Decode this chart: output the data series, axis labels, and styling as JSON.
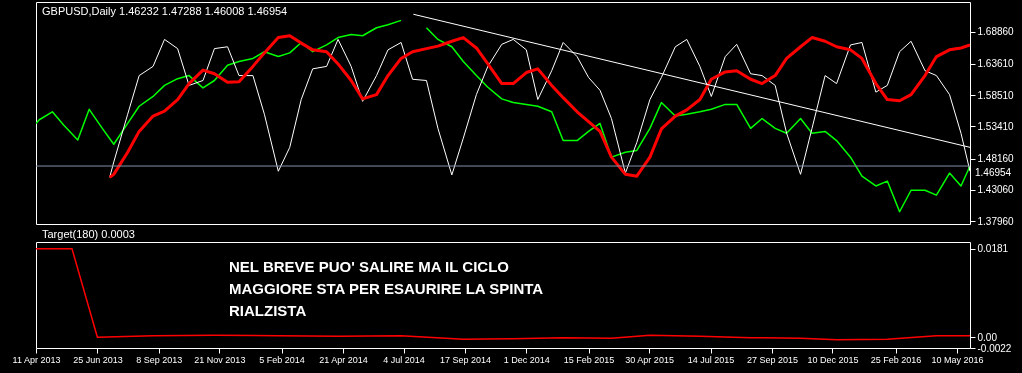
{
  "chart_data": [
    {
      "type": "line",
      "title": "GBPUSD,Daily 1.46232 1.47288 1.46008 1.46954",
      "tick_labels": "y",
      "x": [
        "2013-04-11",
        "2013-04-15",
        "2013-05-01",
        "2013-05-15",
        "2013-06-01",
        "2013-06-15",
        "2013-07-01",
        "2013-07-15",
        "2013-08-01",
        "2013-08-15",
        "2013-09-01",
        "2013-09-15",
        "2013-10-01",
        "2013-10-15",
        "2013-11-01",
        "2013-11-15",
        "2013-12-01",
        "2013-12-15",
        "2014-01-01",
        "2014-01-15",
        "2014-02-01",
        "2014-02-15",
        "2014-03-01",
        "2014-03-15",
        "2014-04-01",
        "2014-04-15",
        "2014-05-01",
        "2014-05-15",
        "2014-06-01",
        "2014-06-15",
        "2014-07-01",
        "2014-07-15",
        "2014-08-01",
        "2014-08-15",
        "2014-09-01",
        "2014-09-15",
        "2014-10-01",
        "2014-10-15",
        "2014-11-01",
        "2014-11-15",
        "2014-12-01",
        "2014-12-15",
        "2015-01-01",
        "2015-01-15",
        "2015-02-01",
        "2015-02-15",
        "2015-03-01",
        "2015-03-15",
        "2015-04-01",
        "2015-04-15",
        "2015-05-01",
        "2015-05-15",
        "2015-06-01",
        "2015-06-15",
        "2015-07-01",
        "2015-07-15",
        "2015-08-01",
        "2015-08-15",
        "2015-09-01",
        "2015-09-15",
        "2015-10-01",
        "2015-10-15",
        "2015-11-01",
        "2015-11-15",
        "2015-12-01",
        "2015-12-15",
        "2016-01-01",
        "2016-01-15",
        "2016-02-01",
        "2016-02-15",
        "2016-03-01",
        "2016-03-15",
        "2016-04-01",
        "2016-04-15",
        "2016-05-01",
        "2016-05-15",
        "2016-05-26"
      ],
      "series": [
        {
          "color": "#00ff00",
          "values": [
            1.539,
            1.545,
            1.558,
            1.536,
            1.512,
            1.562,
            1.531,
            1.505,
            1.539,
            1.567,
            1.583,
            1.601,
            1.612,
            1.617,
            1.597,
            1.609,
            1.634,
            1.64,
            1.645,
            1.656,
            1.648,
            1.654,
            1.671,
            1.656,
            1.667,
            1.679,
            1.684,
            1.682,
            1.695,
            1.7,
            1.707,
            null,
            1.695,
            1.676,
            1.664,
            1.64,
            1.617,
            1.598,
            1.579,
            1.573,
            1.57,
            1.567,
            1.558,
            1.511,
            1.511,
            1.526,
            1.539,
            1.484,
            1.492,
            1.495,
            1.531,
            1.573,
            1.551,
            1.554,
            1.558,
            1.562,
            1.57,
            1.57,
            1.531,
            1.547,
            1.531,
            1.523,
            1.547,
            1.523,
            1.526,
            1.511,
            1.484,
            1.453,
            1.437,
            1.445,
            1.395,
            1.43,
            1.43,
            1.422,
            1.458,
            1.437,
            1.46954
          ]
        },
        {
          "color": "#ffffff",
          "x": [
            "2013-07-10",
            "2013-07-15",
            "2013-08-01",
            "2013-08-15",
            "2013-09-01",
            "2013-09-15",
            "2013-10-01",
            "2013-10-15",
            "2013-11-01",
            "2013-11-15",
            "2013-12-01",
            "2013-12-15",
            "2014-01-01",
            "2014-01-15",
            "2014-02-01",
            "2014-02-15",
            "2014-03-01",
            "2014-03-15",
            "2014-04-01",
            "2014-04-15",
            "2014-05-01",
            "2014-05-15",
            "2014-06-01",
            "2014-06-15",
            "2014-07-01",
            "2014-07-15",
            "2014-08-01",
            "2014-08-15",
            "2014-09-01",
            "2014-09-15",
            "2014-10-01",
            "2014-10-15",
            "2014-11-01",
            "2014-11-15",
            "2014-12-01",
            "2014-12-15",
            "2015-01-01",
            "2015-01-15",
            "2015-02-01",
            "2015-02-15",
            "2015-03-01",
            "2015-03-15",
            "2015-04-01",
            "2015-04-15",
            "2015-05-01",
            "2015-05-15",
            "2015-06-01",
            "2015-06-15",
            "2015-07-01",
            "2015-07-15",
            "2015-08-01",
            "2015-08-15",
            "2015-09-01",
            "2015-09-15",
            "2015-10-01",
            "2015-10-15",
            "2015-11-01",
            "2015-11-15",
            "2015-12-01",
            "2015-12-15",
            "2016-01-01",
            "2016-01-15",
            "2016-02-01",
            "2016-02-15",
            "2016-03-01",
            "2016-03-15",
            "2016-04-01",
            "2016-04-15",
            "2016-05-01",
            "2016-05-15",
            "2016-05-26"
          ],
          "values": [
            1.451,
            1.476,
            1.554,
            1.617,
            1.632,
            1.676,
            1.661,
            1.601,
            1.609,
            1.661,
            1.664,
            1.617,
            1.617,
            1.554,
            1.461,
            1.5,
            1.578,
            1.628,
            1.632,
            1.676,
            1.632,
            1.575,
            1.617,
            1.659,
            1.671,
            1.611,
            1.609,
            1.531,
            1.455,
            1.515,
            1.586,
            1.632,
            1.668,
            1.676,
            1.659,
            1.578,
            1.625,
            1.671,
            1.648,
            1.614,
            1.593,
            1.547,
            1.458,
            1.508,
            1.578,
            1.614,
            1.664,
            1.676,
            1.632,
            1.583,
            1.648,
            1.668,
            1.62,
            1.617,
            1.601,
            1.523,
            1.456,
            1.531,
            1.617,
            1.604,
            1.667,
            1.671,
            1.59,
            1.601,
            1.656,
            1.673,
            1.625,
            1.617,
            1.586,
            1.523,
            1.461
          ]
        },
        {
          "color": "#ff0000",
          "x": [
            "2013-07-10",
            "2013-07-15",
            "2013-08-01",
            "2013-08-15",
            "2013-09-01",
            "2013-09-15",
            "2013-10-01",
            "2013-10-15",
            "2013-11-01",
            "2013-11-15",
            "2013-12-01",
            "2013-12-15",
            "2014-01-01",
            "2014-01-15",
            "2014-02-01",
            "2014-02-15",
            "2014-03-01",
            "2014-03-15",
            "2014-04-01",
            "2014-04-15",
            "2014-05-01",
            "2014-05-15",
            "2014-06-01",
            "2014-06-15",
            "2014-07-01",
            "2014-07-15",
            "2014-08-01",
            "2014-08-15",
            "2014-09-01",
            "2014-09-15",
            "2014-10-01",
            "2014-10-15",
            "2014-11-01",
            "2014-11-15",
            "2014-12-01",
            "2014-12-15",
            "2015-01-01",
            "2015-01-15",
            "2015-02-01",
            "2015-02-15",
            "2015-03-01",
            "2015-03-15",
            "2015-04-01",
            "2015-04-15",
            "2015-05-01",
            "2015-05-15",
            "2015-06-01",
            "2015-06-15",
            "2015-07-01",
            "2015-07-15",
            "2015-08-01",
            "2015-08-15",
            "2015-09-01",
            "2015-09-15",
            "2015-10-01",
            "2015-10-15",
            "2015-11-01",
            "2015-11-15",
            "2015-12-01",
            "2015-12-15",
            "2016-01-01",
            "2016-01-15",
            "2016-02-01",
            "2016-02-15",
            "2016-03-01",
            "2016-03-15",
            "2016-04-01",
            "2016-04-15",
            "2016-05-01",
            "2016-05-15",
            "2016-05-26"
          ],
          "values": [
            1.451,
            1.456,
            1.492,
            1.526,
            1.551,
            1.559,
            1.578,
            1.604,
            1.626,
            1.62,
            1.606,
            1.607,
            1.632,
            1.654,
            1.679,
            1.682,
            1.67,
            1.659,
            1.656,
            1.636,
            1.609,
            1.579,
            1.586,
            1.617,
            1.645,
            1.656,
            1.661,
            1.665,
            1.673,
            1.679,
            1.662,
            1.636,
            1.604,
            1.604,
            1.622,
            1.628,
            1.601,
            1.581,
            1.558,
            1.542,
            1.526,
            1.484,
            1.456,
            1.453,
            1.484,
            1.53,
            1.551,
            1.561,
            1.578,
            1.611,
            1.623,
            1.625,
            1.611,
            1.604,
            1.617,
            1.645,
            1.664,
            1.679,
            1.673,
            1.664,
            1.659,
            1.645,
            1.604,
            1.578,
            1.576,
            1.586,
            1.617,
            1.648,
            1.659,
            1.662,
            1.667
          ]
        },
        {
          "color": "#ffffff",
          "x": [
            "2014-07-16",
            "2016-05-26"
          ],
          "values": [
            1.717,
            1.5
          ]
        }
      ],
      "xlim": [
        "2013-04-11",
        "2016-05-26"
      ],
      "ylim": [
        1.375,
        1.737
      ],
      "yticks": [
        {
          "value": 1.3796,
          "label": "1.37960"
        },
        {
          "value": 1.4306,
          "label": "1.43060"
        },
        {
          "value": 1.4816,
          "label": "1.48160"
        },
        {
          "value": 1.5341,
          "label": "1.53410"
        },
        {
          "value": 1.5851,
          "label": "1.58510"
        },
        {
          "value": 1.6361,
          "label": "1.63610"
        },
        {
          "value": 1.6886,
          "label": "1.68860"
        }
      ],
      "ref_lines": [
        {
          "axis": "y",
          "value": 1.46954,
          "label": "1.46954",
          "color": "#8092a8"
        }
      ]
    },
    {
      "type": "line",
      "title": "Target(180) 0.0003",
      "series": [
        {
          "color": "#ff0000",
          "x": [
            "2013-04-11",
            "2013-05-25",
            "2013-06-25",
            "2013-09-01",
            "2013-11-15",
            "2014-02-01",
            "2014-04-15",
            "2014-07-01",
            "2014-09-15",
            "2014-11-15",
            "2015-01-15",
            "2015-03-15",
            "2015-05-01",
            "2015-07-01",
            "2015-09-01",
            "2015-11-01",
            "2015-12-15",
            "2016-02-15",
            "2016-04-15",
            "2016-05-26"
          ],
          "values": [
            0.0181,
            0.0181,
            0.0,
            0.0003,
            0.0004,
            0.0003,
            0.0002,
            0.0003,
            -0.0004,
            -0.0003,
            -0.0001,
            -0.0002,
            0.0004,
            0.0002,
            -0.0001,
            -0.0002,
            -0.0005,
            -0.0004,
            0.0003,
            0.0003
          ]
        }
      ],
      "xlim": [
        "2013-04-11",
        "2016-05-26"
      ],
      "ylim": [
        -0.0022,
        0.0195
      ],
      "yticks": [
        -0.0022,
        {
          "value": 0,
          "label": "0.00"
        },
        0.0181
      ],
      "xticks": [
        {
          "value": "2013-04-11",
          "label": "11 Apr 2013"
        },
        {
          "value": "2013-06-25",
          "label": "25 Jun 2013"
        },
        {
          "value": "2013-09-08",
          "label": "8 Sep 2013"
        },
        {
          "value": "2013-11-21",
          "label": "21 Nov 2013"
        },
        {
          "value": "2014-02-05",
          "label": "5 Feb 2014"
        },
        {
          "value": "2014-04-21",
          "label": "21 Apr 2014"
        },
        {
          "value": "2014-07-04",
          "label": "4 Jul 2014"
        },
        {
          "value": "2014-09-17",
          "label": "17 Sep 2014"
        },
        {
          "value": "2014-12-01",
          "label": "1 Dec 2014"
        },
        {
          "value": "2015-02-15",
          "label": "15 Feb 2015"
        },
        {
          "value": "2015-04-30",
          "label": "30 Apr 2015"
        },
        {
          "value": "2015-07-14",
          "label": "14 Jul 2015"
        },
        {
          "value": "2015-09-27",
          "label": "27 Sep 2015"
        },
        {
          "value": "2015-12-10",
          "label": "10 Dec 2015"
        },
        {
          "value": "2016-02-25",
          "label": "25 Feb 2016"
        },
        {
          "value": "2016-05-10",
          "label": "10 May 2016"
        }
      ],
      "annotations": [
        "NEL BREVE PUO' SALIRE MA IL CICLO\nMAGGIORE STA PER ESAURIRE LA SPINTA\nRIALZISTA"
      ]
    }
  ]
}
